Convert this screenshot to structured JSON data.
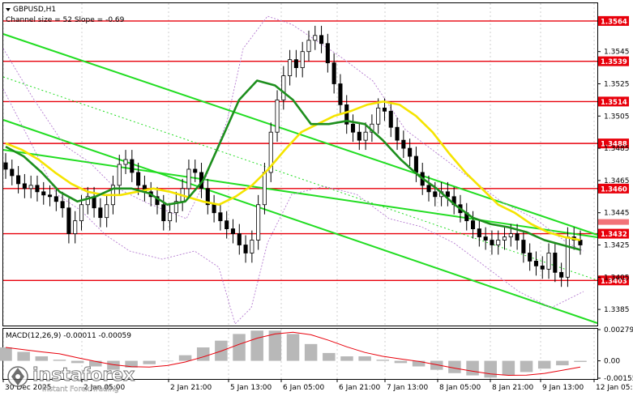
{
  "chart_data": {
    "type": "candlestick",
    "symbol_header": "GBPUSD,H1",
    "indicator_header": "Channel size = 52 Slope = -0.69",
    "macd_header": "MACD(12,26,9) -0.00011 -0.00059",
    "price_ylim": [
      1.3375,
      1.3575
    ],
    "price_ticks": [
      "1.3545",
      "1.3525",
      "1.3505",
      "1.3485",
      "1.3465",
      "1.3445",
      "1.3425",
      "1.3405",
      "1.3385"
    ],
    "levels": [
      {
        "label": "1.3564",
        "value": 1.3564
      },
      {
        "label": "1.3539",
        "value": 1.3539
      },
      {
        "label": "1.3514",
        "value": 1.3514
      },
      {
        "label": "1.3488",
        "value": 1.3488
      },
      {
        "label": "1.3460",
        "value": 1.346
      },
      {
        "label": "1.3432",
        "value": 1.3432
      },
      {
        "label": "1.3403",
        "value": 1.3403
      }
    ],
    "current_price_label": "1.3435",
    "macd_ticks": [
      "0.00279",
      "0.00",
      "-0.00155"
    ],
    "x_labels": [
      "30 Dec 2025",
      "2 Jan 05:00",
      "2 Jan 21:00",
      "5 Jan 13:00",
      "6 Jan 05:00",
      "6 Jan 21:00",
      "7 Jan 13:00",
      "8 Jan 05:00",
      "8 Jan 21:00",
      "9 Jan 13:00",
      "12 Jan 05:00"
    ],
    "prices": [
      1.3472,
      1.3468,
      1.3463,
      1.346,
      1.3462,
      1.3458,
      1.3456,
      1.3455,
      1.3452,
      1.3448,
      1.3432,
      1.344,
      1.345,
      1.3455,
      1.3448,
      1.3442,
      1.345,
      1.3462,
      1.3475,
      1.3478,
      1.347,
      1.3462,
      1.3458,
      1.3455,
      1.345,
      1.344,
      1.3445,
      1.3452,
      1.346,
      1.3472,
      1.347,
      1.346,
      1.345,
      1.3445,
      1.344,
      1.3435,
      1.3432,
      1.3425,
      1.342,
      1.3428,
      1.345,
      1.347,
      1.3495,
      1.3515,
      1.353,
      1.354,
      1.3535,
      1.3545,
      1.3552,
      1.3555,
      1.355,
      1.3538,
      1.3525,
      1.3512,
      1.35,
      1.3495,
      1.349,
      1.3495,
      1.35,
      1.351,
      1.3508,
      1.3498,
      1.349,
      1.3485,
      1.348,
      1.347,
      1.3462,
      1.3458,
      1.3455,
      1.3458,
      1.3455,
      1.345,
      1.3445,
      1.344,
      1.3435,
      1.343,
      1.3428,
      1.3425,
      1.3428,
      1.343,
      1.3432,
      1.3428,
      1.342,
      1.3415,
      1.3412,
      1.341,
      1.342,
      1.3408,
      1.3405,
      1.343,
      1.3428,
      1.3425
    ],
    "ema_yellow": [
      1.3488,
      1.3484,
      1.3478,
      1.347,
      1.3463,
      1.3458,
      1.3456,
      1.3456,
      1.3458,
      1.346,
      1.3458,
      1.3455,
      1.3452,
      1.345,
      1.3455,
      1.3462,
      1.3472,
      1.3484,
      1.3495,
      1.35,
      1.3505,
      1.3508,
      1.3512,
      1.3514,
      1.3512,
      1.3505,
      1.3495,
      1.3482,
      1.347,
      1.346,
      1.345,
      1.3445,
      1.3438,
      1.3433,
      1.343,
      1.3428
    ],
    "ema_green": [
      1.3486,
      1.348,
      1.347,
      1.3458,
      1.3452,
      1.3455,
      1.346,
      1.346,
      1.3457,
      1.345,
      1.3452,
      1.3465,
      1.349,
      1.3515,
      1.3527,
      1.3524,
      1.3515,
      1.35,
      1.35,
      1.3502,
      1.35,
      1.349,
      1.3478,
      1.3468,
      1.346,
      1.345,
      1.3442,
      1.3438,
      1.3436,
      1.3433,
      1.3428,
      1.3425,
      1.3422
    ],
    "macd_histogram": [
      0.0012,
      0.0008,
      0.0004,
      0.0001,
      -0.0002,
      -0.0005,
      -0.0008,
      -0.0006,
      -0.0003,
      0.0,
      0.0005,
      0.0012,
      0.0018,
      0.0024,
      0.0027,
      0.0027,
      0.0024,
      0.0015,
      0.0007,
      0.0004,
      0.0004,
      0.0001,
      -0.0002,
      -0.0005,
      -0.0008,
      -0.0011,
      -0.0013,
      -0.0015,
      -0.0013,
      -0.001,
      -0.0007,
      -0.0004,
      -0.0001
    ],
    "colors": {
      "level_line": "#e8000b",
      "ema_fast": "#f5e400",
      "ema_slow": "#1d8f1d",
      "channel": "#22dd22",
      "candle": "#000000",
      "macd_bar": "#b8b8b8",
      "macd_signal": "#e8000b"
    }
  },
  "watermark": {
    "brand": "instaforex",
    "tagline": "Instant Forex Trading"
  }
}
